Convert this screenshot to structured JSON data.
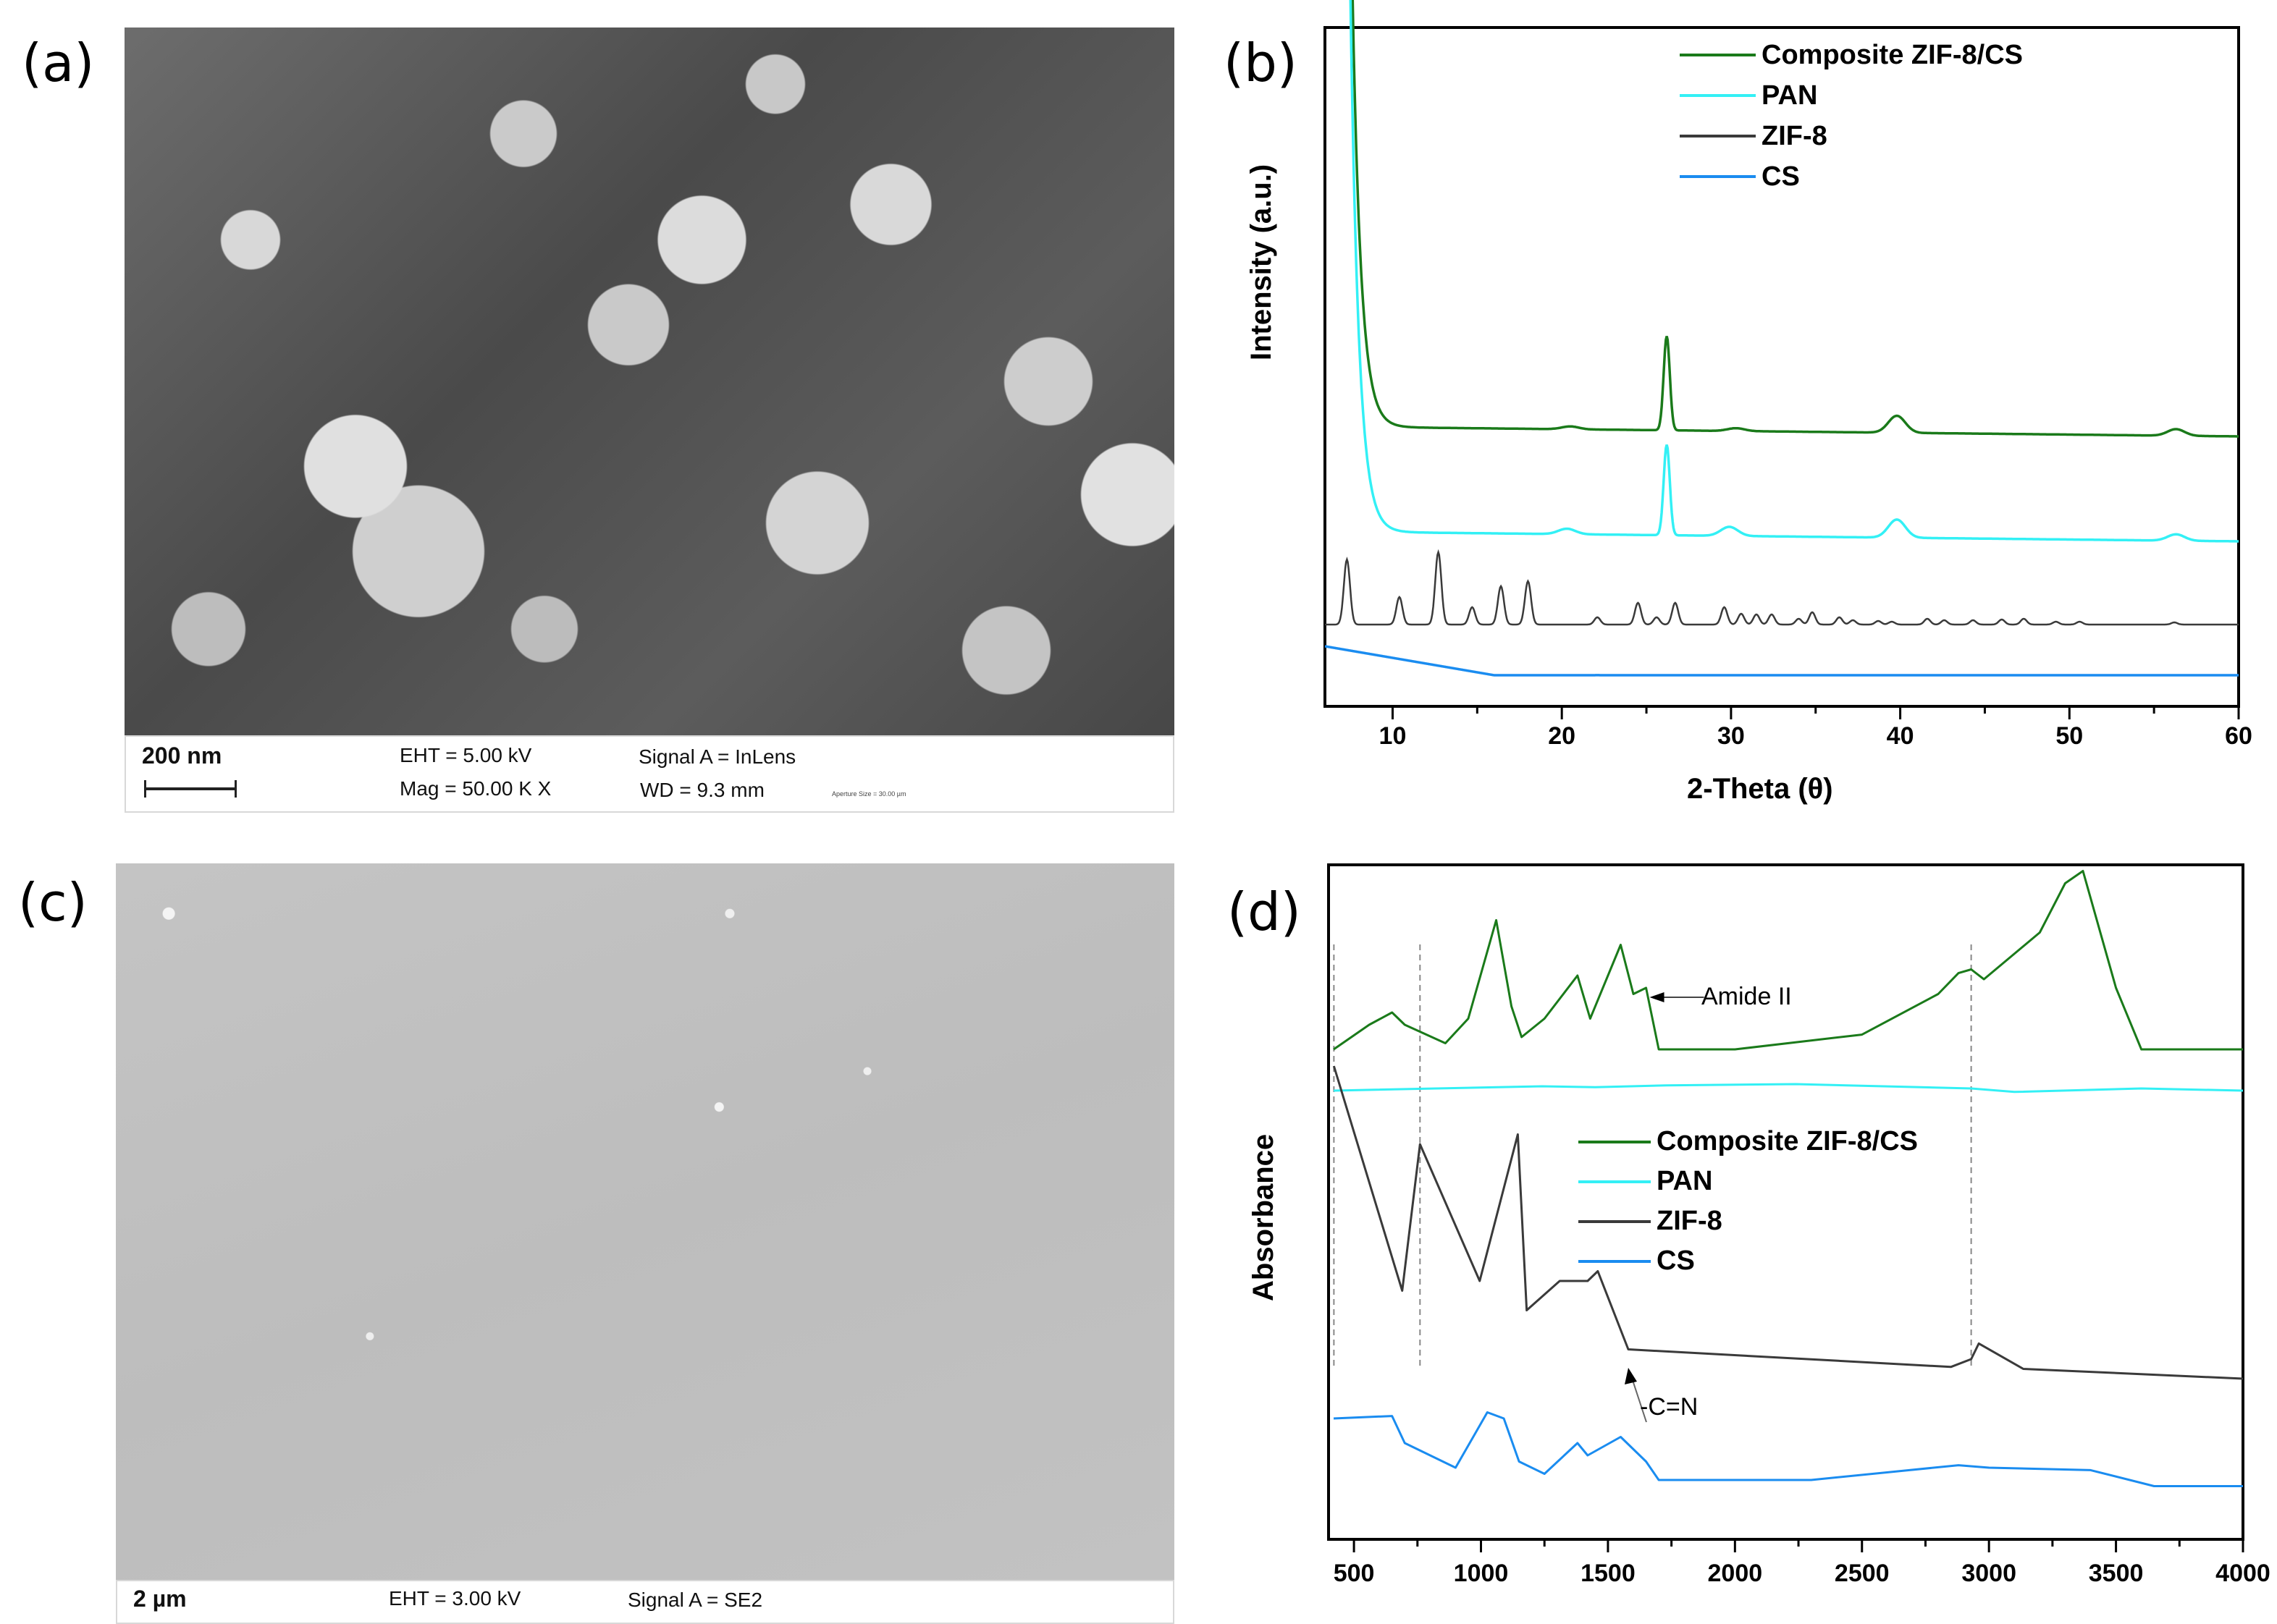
{
  "panels": {
    "a": {
      "label": "(a)"
    },
    "b": {
      "label": "(b)"
    },
    "c": {
      "label": "(c)"
    },
    "d": {
      "label": "(d)"
    }
  },
  "sem_a": {
    "scale_label": "200 nm",
    "eht": "EHT =  5.00 kV",
    "mag": "Mag =   50.00 K X",
    "signal": "Signal A = InLens",
    "wd": "WD =  9.3 mm",
    "aperture": "Aperture Size = 30.00 µm"
  },
  "sem_c": {
    "scale_label": "2 µm",
    "eht": "EHT =  3.00 kV",
    "signal": "Signal A = SE2"
  },
  "colors": {
    "composite": "#1a7a1a",
    "pan": "#33f0f5",
    "zif8": "#3a3a3a",
    "cs": "#1a8cf0"
  },
  "chart_data": [
    {
      "id": "b",
      "type": "line",
      "title": "",
      "xlabel": "2-Theta (θ)",
      "ylabel": "Intensity (a.u.)",
      "xlim": [
        6,
        60
      ],
      "x_ticks": [
        10,
        20,
        30,
        40,
        50,
        60
      ],
      "grid": false,
      "legend_position": "top-center",
      "legend": [
        "Composite ZIF-8/CS",
        "PAN",
        "ZIF-8",
        "CS"
      ],
      "series": [
        {
          "name": "Composite ZIF-8/CS",
          "color": "#1a7a1a",
          "offset": 3,
          "peaks": [
            {
              "x": 26.2,
              "h": 1.0
            },
            {
              "x": 39.8,
              "h": 0.18
            },
            {
              "x": 56.3,
              "h": 0.07
            },
            {
              "x": 20.5,
              "h": 0.03
            },
            {
              "x": 30.3,
              "h": 0.03
            }
          ]
        },
        {
          "name": "PAN",
          "color": "#33f0f5",
          "offset": 2,
          "peaks": [
            {
              "x": 26.2,
              "h": 1.0
            },
            {
              "x": 39.8,
              "h": 0.2
            },
            {
              "x": 56.3,
              "h": 0.07
            },
            {
              "x": 20.3,
              "h": 0.06
            },
            {
              "x": 29.9,
              "h": 0.1
            }
          ]
        },
        {
          "name": "ZIF-8",
          "color": "#3a3a3a",
          "offset": 1,
          "peaks": [
            {
              "x": 7.3,
              "h": 0.9
            },
            {
              "x": 10.4,
              "h": 0.38
            },
            {
              "x": 12.7,
              "h": 1.0
            },
            {
              "x": 14.7,
              "h": 0.24
            },
            {
              "x": 16.4,
              "h": 0.53
            },
            {
              "x": 18.0,
              "h": 0.6
            },
            {
              "x": 22.1,
              "h": 0.1
            },
            {
              "x": 24.5,
              "h": 0.3
            },
            {
              "x": 25.6,
              "h": 0.1
            },
            {
              "x": 26.7,
              "h": 0.3
            },
            {
              "x": 29.6,
              "h": 0.24
            },
            {
              "x": 30.6,
              "h": 0.15
            },
            {
              "x": 31.5,
              "h": 0.14
            },
            {
              "x": 32.4,
              "h": 0.14
            },
            {
              "x": 34.0,
              "h": 0.08
            },
            {
              "x": 34.8,
              "h": 0.17
            },
            {
              "x": 36.4,
              "h": 0.1
            },
            {
              "x": 37.2,
              "h": 0.06
            },
            {
              "x": 38.7,
              "h": 0.05
            },
            {
              "x": 39.5,
              "h": 0.04
            },
            {
              "x": 41.6,
              "h": 0.08
            },
            {
              "x": 42.6,
              "h": 0.06
            },
            {
              "x": 44.3,
              "h": 0.06
            },
            {
              "x": 46.0,
              "h": 0.07
            },
            {
              "x": 47.3,
              "h": 0.08
            },
            {
              "x": 49.2,
              "h": 0.04
            },
            {
              "x": 50.6,
              "h": 0.04
            },
            {
              "x": 56.2,
              "h": 0.03
            }
          ]
        },
        {
          "name": "CS",
          "color": "#1a8cf0",
          "offset": 0,
          "peaks": [
            {
              "x": 22.1,
              "h": 0.06
            }
          ]
        }
      ]
    },
    {
      "id": "d",
      "type": "line",
      "title": "",
      "xlabel": "",
      "ylabel": "Absorbance",
      "xlim": [
        400,
        4000
      ],
      "x_ticks": [
        500,
        1000,
        1500,
        2000,
        2500,
        3000,
        3500,
        4000
      ],
      "grid": false,
      "legend_position": "center",
      "legend": [
        "Composite ZIF-8/CS",
        "PAN",
        "ZIF-8",
        "CS"
      ],
      "reference_lines_x": [
        421,
        760,
        2930
      ],
      "annotations": [
        {
          "text": "Amide II",
          "x": 1650,
          "series": "Composite ZIF-8/CS"
        },
        {
          "text": "-C=N",
          "x": 1580,
          "series": "ZIF-8"
        }
      ],
      "series": [
        {
          "name": "Composite ZIF-8/CS",
          "color": "#1a7a1a",
          "points": [
            [
              420,
              0.0
            ],
            [
              560,
              0.2
            ],
            [
              650,
              0.3
            ],
            [
              700,
              0.2
            ],
            [
              860,
              0.05
            ],
            [
              950,
              0.25
            ],
            [
              1060,
              1.05
            ],
            [
              1120,
              0.35
            ],
            [
              1160,
              0.1
            ],
            [
              1250,
              0.25
            ],
            [
              1380,
              0.6
            ],
            [
              1430,
              0.25
            ],
            [
              1550,
              0.85
            ],
            [
              1600,
              0.45
            ],
            [
              1650,
              0.5
            ],
            [
              1700,
              0.0
            ],
            [
              2000,
              0.0
            ],
            [
              2500,
              0.12
            ],
            [
              2800,
              0.45
            ],
            [
              2880,
              0.62
            ],
            [
              2930,
              0.65
            ],
            [
              2980,
              0.57
            ],
            [
              3200,
              0.95
            ],
            [
              3300,
              1.35
            ],
            [
              3370,
              1.45
            ],
            [
              3500,
              0.5
            ],
            [
              3600,
              0.0
            ],
            [
              4000,
              0.0
            ]
          ]
        },
        {
          "name": "PAN",
          "color": "#33f0f5",
          "points": [
            [
              420,
              0.0
            ],
            [
              1240,
              0.1
            ],
            [
              1450,
              0.08
            ],
            [
              1730,
              0.12
            ],
            [
              2240,
              0.15
            ],
            [
              2930,
              0.05
            ],
            [
              3100,
              -0.03
            ],
            [
              3600,
              0.05
            ],
            [
              4000,
              0.0
            ]
          ]
        },
        {
          "name": "ZIF-8",
          "color": "#3a3a3a",
          "points": [
            [
              421,
              1.6
            ],
            [
              690,
              0.45
            ],
            [
              760,
              1.2
            ],
            [
              995,
              0.5
            ],
            [
              1145,
              1.25
            ],
            [
              1180,
              0.35
            ],
            [
              1310,
              0.5
            ],
            [
              1420,
              0.5
            ],
            [
              1460,
              0.55
            ],
            [
              1580,
              0.15
            ],
            [
              2850,
              0.06
            ],
            [
              2930,
              0.1
            ],
            [
              2960,
              0.18
            ],
            [
              3135,
              0.05
            ],
            [
              4000,
              0.0
            ]
          ]
        },
        {
          "name": "CS",
          "color": "#1a8cf0",
          "points": [
            [
              420,
              0.5
            ],
            [
              650,
              0.52
            ],
            [
              700,
              0.3
            ],
            [
              900,
              0.1
            ],
            [
              1025,
              0.55
            ],
            [
              1090,
              0.5
            ],
            [
              1150,
              0.15
            ],
            [
              1250,
              0.05
            ],
            [
              1380,
              0.3
            ],
            [
              1420,
              0.2
            ],
            [
              1550,
              0.35
            ],
            [
              1650,
              0.15
            ],
            [
              1700,
              0.0
            ],
            [
              2300,
              0.0
            ],
            [
              2880,
              0.12
            ],
            [
              3000,
              0.1
            ],
            [
              3400,
              0.08
            ],
            [
              3650,
              -0.05
            ],
            [
              4000,
              -0.05
            ]
          ]
        }
      ]
    }
  ]
}
